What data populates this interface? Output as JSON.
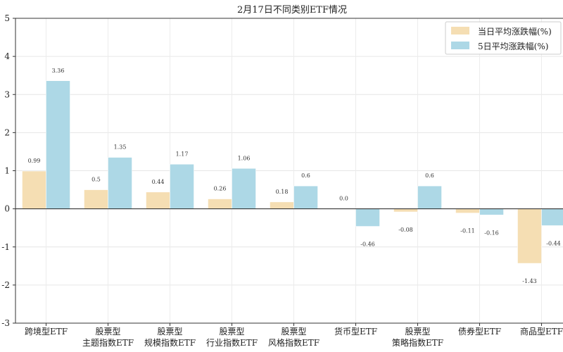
{
  "chart_data": {
    "type": "bar",
    "title": "2月17日不同类别ETF情况",
    "xlabel": "",
    "ylabel": "",
    "ylim": [
      -3,
      5
    ],
    "yticks": [
      -3,
      -2,
      -1,
      0,
      1,
      2,
      3,
      4,
      5
    ],
    "grid": true,
    "legend_position": "top-right",
    "categories": [
      [
        "跨境型ETF"
      ],
      [
        "股票型",
        "主题指数ETF"
      ],
      [
        "股票型",
        "规模指数ETF"
      ],
      [
        "股票型",
        "行业指数ETF"
      ],
      [
        "股票型",
        "风格指数ETF"
      ],
      [
        "货币型ETF"
      ],
      [
        "股票型",
        "策略指数ETF"
      ],
      [
        "债券型ETF"
      ],
      [
        "商品型ETF"
      ]
    ],
    "series": [
      {
        "name": "当日平均涨跌幅(%)",
        "color": "#f5deb3",
        "values": [
          0.99,
          0.5,
          0.44,
          0.26,
          0.18,
          0.0,
          -0.08,
          -0.11,
          -1.43
        ],
        "labels": [
          "0.99",
          "0.5",
          "0.44",
          "0.26",
          "0.18",
          "0.0",
          "-0.08",
          "-0.11",
          "-1.43"
        ]
      },
      {
        "name": "5日平均涨跌幅(%)",
        "color": "#add8e6",
        "values": [
          3.36,
          1.35,
          1.17,
          1.06,
          0.6,
          -0.46,
          0.6,
          -0.16,
          -0.44
        ],
        "labels": [
          "3.36",
          "1.35",
          "1.17",
          "1.06",
          "0.6",
          "-0.46",
          "0.6",
          "-0.16",
          "-0.44"
        ]
      }
    ]
  }
}
